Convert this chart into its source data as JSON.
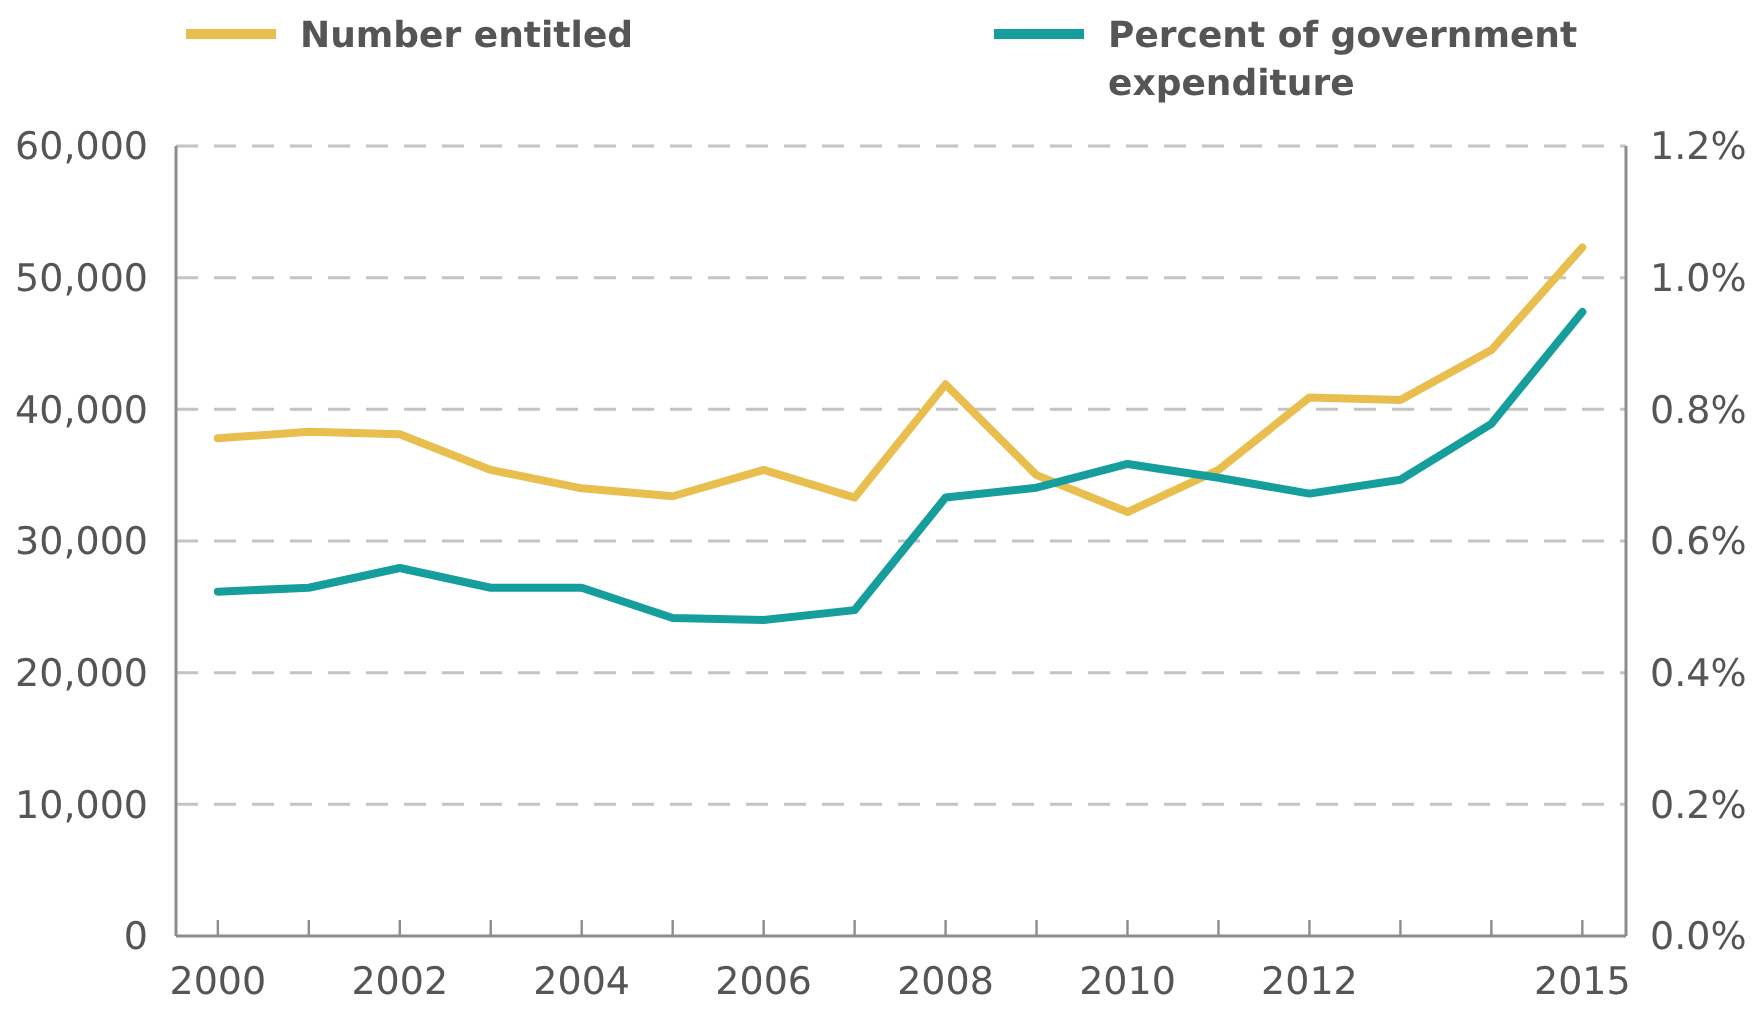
{
  "chart_data": {
    "type": "line",
    "x": [
      2000,
      2001,
      2002,
      2003,
      2004,
      2005,
      2006,
      2007,
      2008,
      2009,
      2010,
      2011,
      2012,
      2013,
      2014,
      2015
    ],
    "series": [
      {
        "name": "Number entitled",
        "color": "#e8bf4e",
        "values": [
          37800,
          38300,
          38100,
          35400,
          34000,
          33400,
          35400,
          33300,
          41900,
          35000,
          32200,
          35400,
          40900,
          40700,
          44500,
          52300
        ]
      },
      {
        "name": "Percent of government expenditure",
        "color": "#169e9c",
        "axis": "y2",
        "values": [
          0.523,
          0.529,
          0.559,
          0.529,
          0.529,
          0.483,
          0.48,
          0.495,
          0.666,
          0.681,
          0.717,
          0.696,
          0.672,
          0.693,
          0.778,
          0.948
        ]
      }
    ],
    "xlim": [
      1999.54,
      2015.48
    ],
    "xticks": [
      2000,
      {
        "value": 2001,
        "label": null
      },
      2002,
      {
        "value": 2003,
        "label": null
      },
      2004,
      {
        "value": 2005,
        "label": null
      },
      2006,
      {
        "value": 2007,
        "label": null
      },
      2008,
      {
        "value": 2009,
        "label": null
      },
      2010,
      {
        "value": 2011,
        "label": null
      },
      2012,
      {
        "value": 2013,
        "label": null
      },
      {
        "value": 2014,
        "label": null
      },
      2015
    ],
    "ylim": [
      0,
      60000
    ],
    "yticks": [
      {
        "value": 0,
        "label": "0"
      },
      {
        "value": 10000,
        "label": "10,000"
      },
      {
        "value": 20000,
        "label": "20,000"
      },
      {
        "value": 30000,
        "label": "30,000"
      },
      {
        "value": 40000,
        "label": "40,000"
      },
      {
        "value": 50000,
        "label": "50,000"
      },
      {
        "value": 60000,
        "label": "60,000"
      }
    ],
    "y2lim": [
      0,
      1.2
    ],
    "y2ticks": [
      {
        "value": 0,
        "label": "0.0%"
      },
      {
        "value": 0.2,
        "label": "0.2%"
      },
      {
        "value": 0.4,
        "label": "0.4%"
      },
      {
        "value": 0.6,
        "label": "0.6%"
      },
      {
        "value": 0.8,
        "label": "0.8%"
      },
      {
        "value": 1.0,
        "label": "1.0%"
      },
      {
        "value": 1.2,
        "label": "1.2%"
      }
    ],
    "grid": "y",
    "legend": "top",
    "line_style": "solid",
    "marker": "none"
  }
}
